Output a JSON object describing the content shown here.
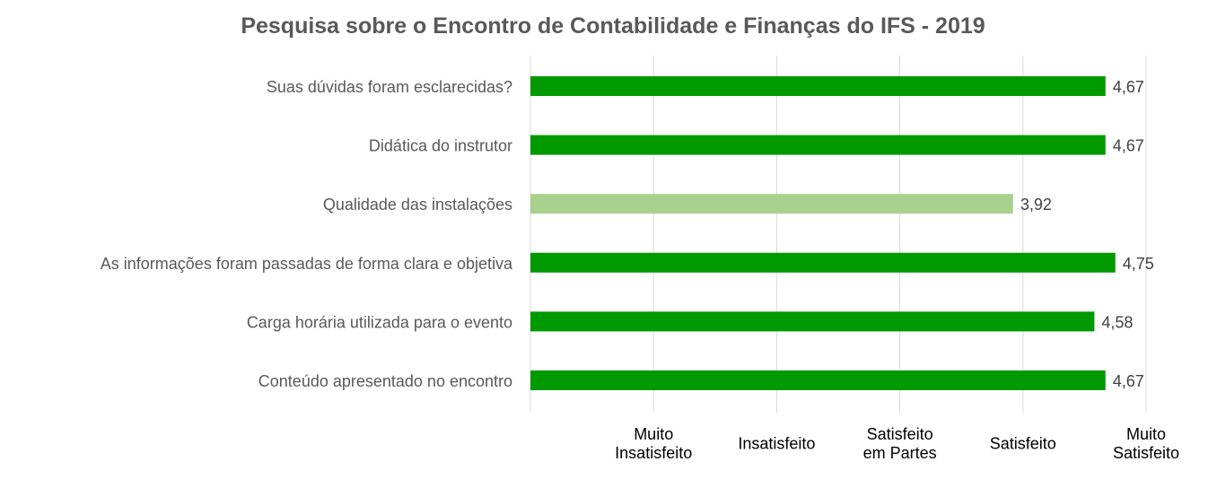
{
  "chart_data": {
    "type": "bar",
    "orientation": "horizontal",
    "title": "Pesquisa sobre o Encontro de Contabilidade e Finanças do IFS - 2019",
    "categories": [
      "Suas dúvidas foram esclarecidas?",
      "Didática do instrutor",
      "Qualidade das instalações",
      "As informações foram passadas de forma clara e objetiva",
      "Carga horária utilizada para o evento",
      "Conteúdo apresentado no encontro"
    ],
    "values": [
      4.67,
      4.67,
      3.92,
      4.75,
      4.58,
      4.67
    ],
    "value_labels": [
      "4,67",
      "4,67",
      "3,92",
      "4,75",
      "4,58",
      "4,67"
    ],
    "bar_colors": [
      "#009900",
      "#009900",
      "#a9d18e",
      "#009900",
      "#009900",
      "#009900"
    ],
    "xlim": [
      0,
      5
    ],
    "x_ticks": [
      {
        "value": 1,
        "label": [
          "Muito",
          "Insatisfeito"
        ]
      },
      {
        "value": 2,
        "label": [
          "Insatisfeito"
        ]
      },
      {
        "value": 3,
        "label": [
          "Satisfeito",
          "em Partes"
        ]
      },
      {
        "value": 4,
        "label": [
          "Satisfeito"
        ]
      },
      {
        "value": 5,
        "label": [
          "Muito",
          "Satisfeito"
        ]
      }
    ],
    "grid": true,
    "legend": "none"
  },
  "colors": {
    "title": "#595959",
    "category_label": "#595959",
    "value_label": "#404040",
    "tick_label": "#000000",
    "grid": "#d9d9d9"
  }
}
